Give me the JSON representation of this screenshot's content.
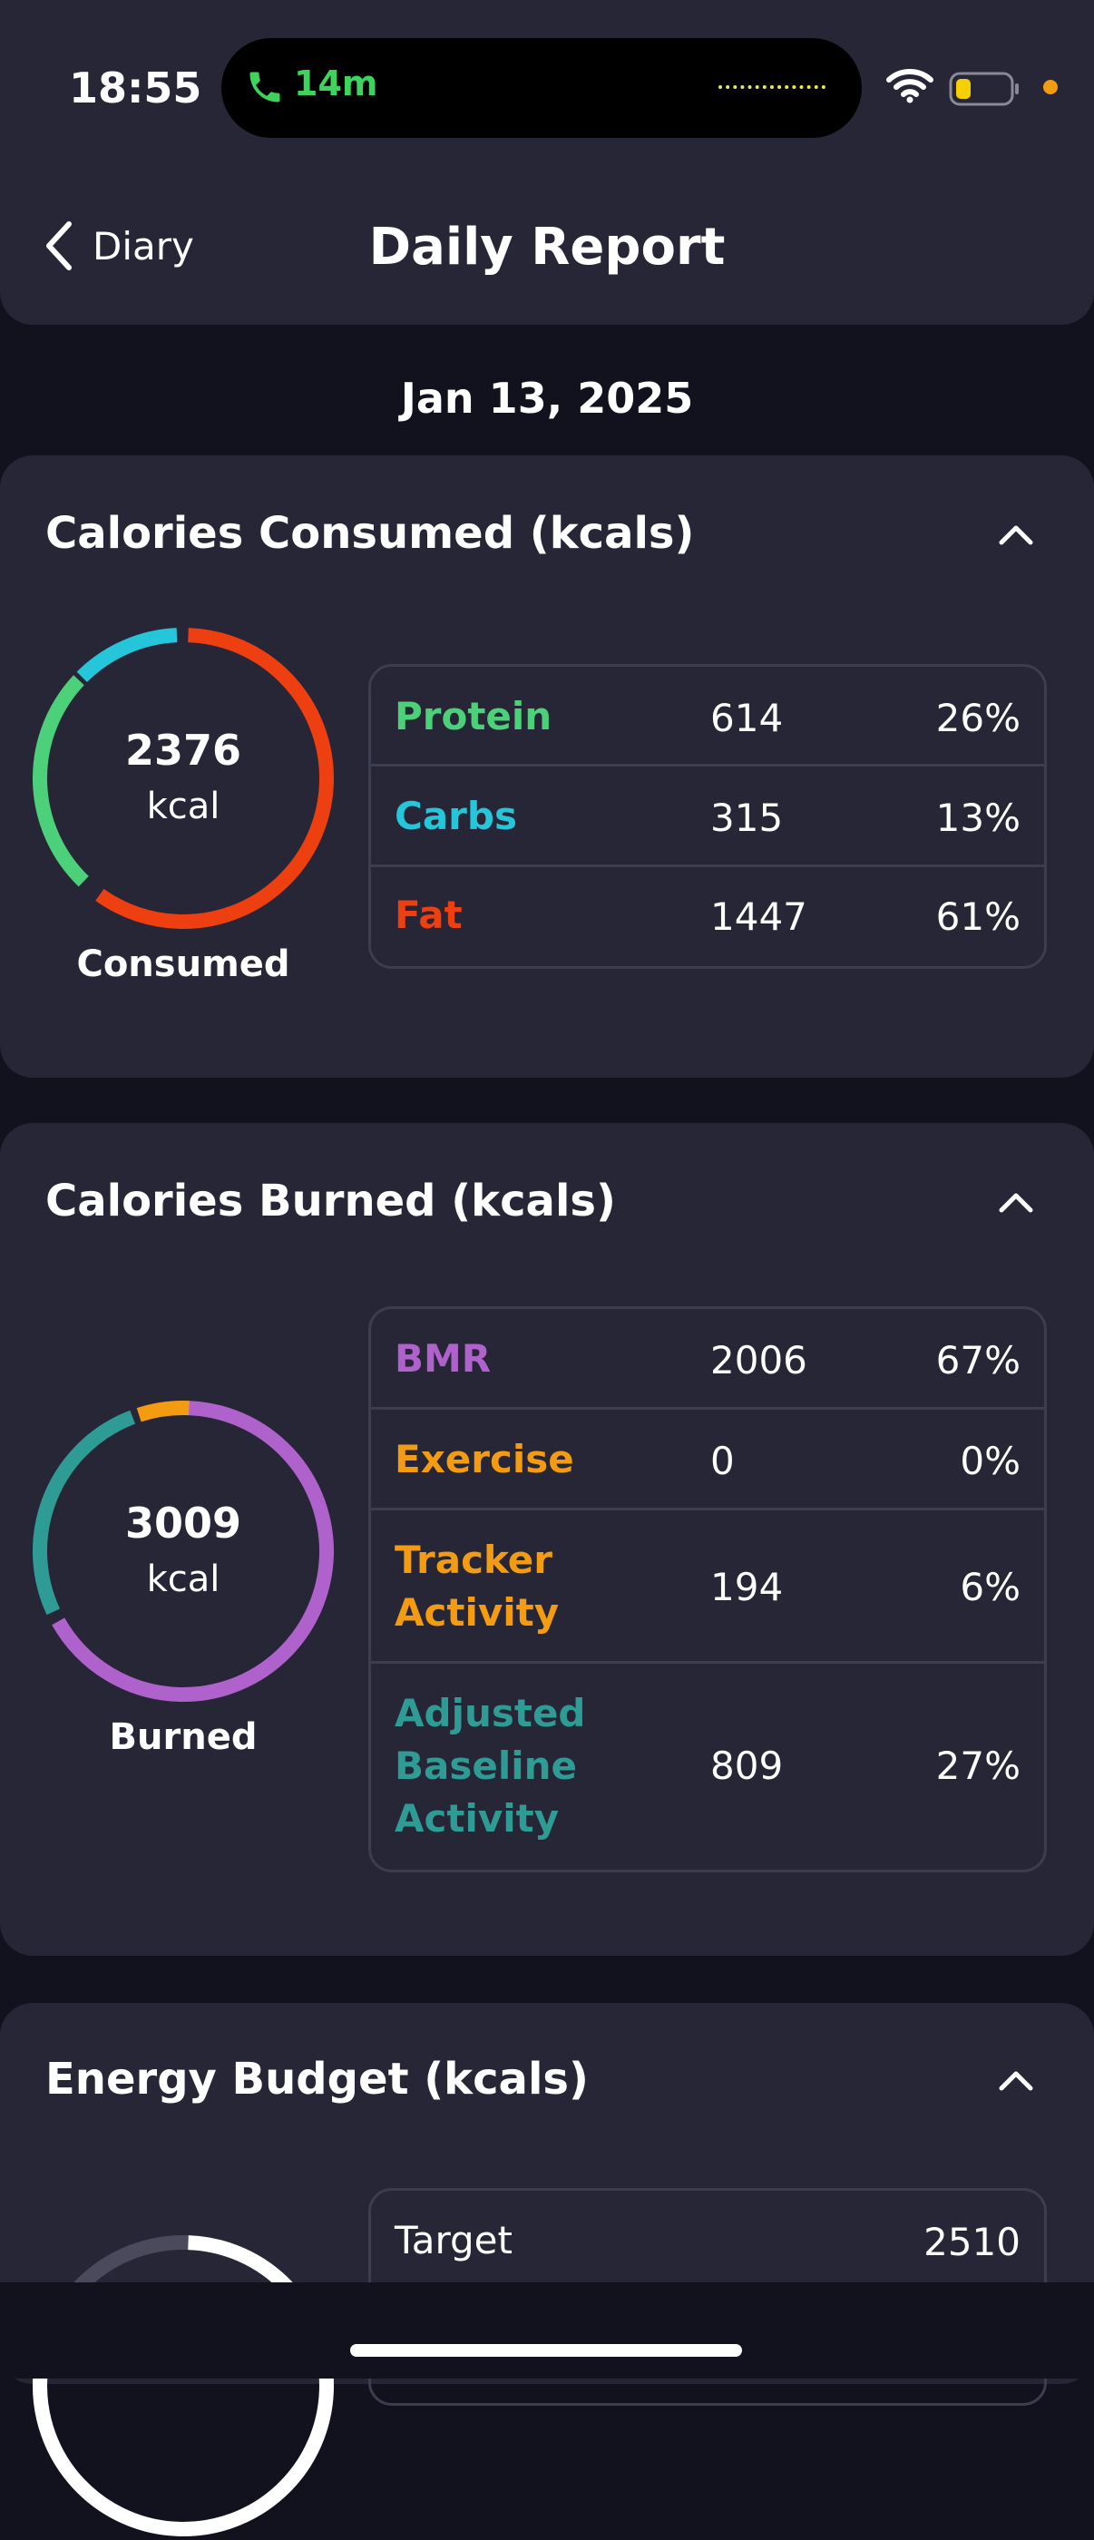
{
  "status_bar": {
    "time": "18:55",
    "call_duration": "14m"
  },
  "header": {
    "back_label": "Diary",
    "title": "Daily Report"
  },
  "date": "Jan 13, 2025",
  "consumed": {
    "title": "Calories Consumed (kcals)",
    "total": "2376",
    "unit": "kcal",
    "label": "Consumed",
    "rows": [
      {
        "name": "Protein",
        "value": "614",
        "percent": "26%",
        "color": "#4cd07a"
      },
      {
        "name": "Carbs",
        "value": "315",
        "percent": "13%",
        "color": "#26c6da"
      },
      {
        "name": "Fat",
        "value": "1447",
        "percent": "61%",
        "color": "#ee3f10"
      }
    ]
  },
  "burned": {
    "title": "Calories Burned (kcals)",
    "total": "3009",
    "unit": "kcal",
    "label": "Burned",
    "rows": [
      {
        "name": "BMR",
        "value": "2006",
        "percent": "67%",
        "color": "#b062cc"
      },
      {
        "name": "Exercise",
        "value": "0",
        "percent": "0%",
        "color": "#f39c12"
      },
      {
        "name": "Tracker Activity",
        "value": "194",
        "percent": "6%",
        "color": "#f39c12"
      },
      {
        "name": "Adjusted Baseline Activity",
        "value": "809",
        "percent": "27%",
        "color": "#2e9c94"
      }
    ]
  },
  "energy_budget": {
    "title": "Energy Budget (kcals)",
    "rows": [
      {
        "name": "Target",
        "value": "2510"
      }
    ]
  }
}
